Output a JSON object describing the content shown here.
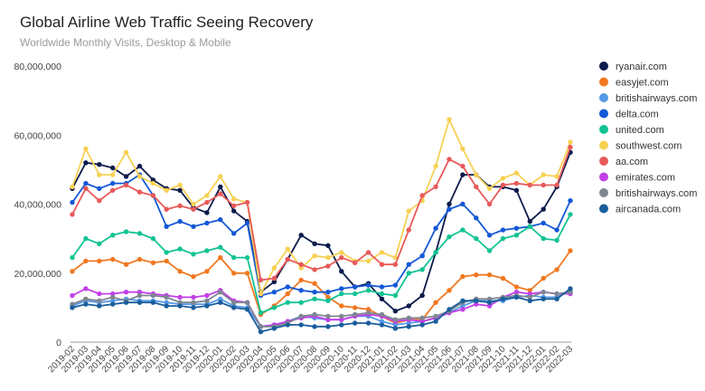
{
  "chart_data": {
    "type": "line",
    "title": "Global Airline Web Traffic Seeing Recovery",
    "subtitle": "Worldwide Monthly Visits, Desktop & Mobile",
    "xlabel": "",
    "ylabel": "",
    "ylim": [
      0,
      80000000
    ],
    "y_ticks": [
      0,
      20000000,
      40000000,
      60000000,
      80000000
    ],
    "y_tick_labels": [
      "0",
      "20,000,000",
      "40,000,000",
      "60,000,000",
      "80,000,000"
    ],
    "grid": false,
    "legend_position": "right",
    "x": [
      "2019-02",
      "2019-03",
      "2019-04",
      "2019-05",
      "2019-06",
      "2019-07",
      "2019-08",
      "2019-09",
      "2019-10",
      "2019-11",
      "2019-12",
      "2020-01",
      "2020-02",
      "2020-03",
      "2020-04",
      "2020-05",
      "2020-06",
      "2020-07",
      "2020-08",
      "2020-09",
      "2020-10",
      "2020-11",
      "2020-12",
      "2021-01",
      "2021-02",
      "2021-03",
      "2021-04",
      "2021-05",
      "2021-06",
      "2021-07",
      "2021-08",
      "2021-09",
      "2021-10",
      "2021-11",
      "2021-12",
      "2022-01",
      "2022-02",
      "2022-03"
    ],
    "series": [
      {
        "name": "ryanair.com",
        "color": "#0d1b4c",
        "values": [
          44500000,
          52000000,
          51500000,
          50500000,
          48000000,
          51000000,
          47000000,
          44500000,
          44000000,
          39000000,
          37500000,
          45000000,
          38000000,
          35000000,
          14500000,
          17500000,
          24000000,
          31000000,
          28500000,
          28000000,
          20500000,
          16000000,
          17000000,
          12500000,
          9000000,
          10500000,
          13500000,
          26000000,
          40000000,
          48500000,
          48500000,
          45000000,
          45000000,
          44000000,
          35000000,
          38500000,
          45000000,
          55000000
        ]
      },
      {
        "name": "easyjet.com",
        "color": "#f07820",
        "values": [
          20500000,
          23500000,
          23500000,
          24000000,
          22500000,
          24000000,
          23000000,
          23500000,
          20500000,
          19000000,
          20500000,
          24500000,
          20000000,
          20000000,
          8000000,
          10500000,
          14000000,
          18000000,
          17000000,
          13000000,
          10500000,
          10000000,
          9500000,
          7500000,
          5500000,
          6500000,
          6500000,
          11500000,
          15000000,
          19000000,
          19500000,
          19500000,
          18500000,
          16000000,
          15000000,
          18500000,
          21000000,
          26500000
        ]
      },
      {
        "name": "britishairways.com",
        "color": "#5599e8",
        "values": [
          10500000,
          12000000,
          11500000,
          12000000,
          12500000,
          12000000,
          12000000,
          11500000,
          11000000,
          11000000,
          11000000,
          12500000,
          10500000,
          10000000,
          4500000,
          5000000,
          6000000,
          7500000,
          7000000,
          6500000,
          6500000,
          7500000,
          7500000,
          6000000,
          5000000,
          5500000,
          6000000,
          7000000,
          8500000,
          10500000,
          12000000,
          12000000,
          12000000,
          13000000,
          13500000,
          13000000,
          13000000,
          15000000
        ]
      },
      {
        "name": "delta.com",
        "color": "#1558d6",
        "values": [
          40500000,
          46000000,
          44500000,
          46000000,
          46000000,
          48500000,
          42500000,
          33500000,
          35000000,
          33500000,
          34500000,
          35500000,
          31500000,
          34500000,
          13500000,
          14500000,
          16000000,
          15000000,
          14500000,
          14500000,
          15500000,
          16000000,
          16500000,
          16000000,
          16500000,
          22500000,
          25000000,
          33000000,
          38500000,
          40000000,
          36000000,
          31000000,
          32500000,
          33000000,
          33500000,
          34500000,
          32500000,
          41000000
        ]
      },
      {
        "name": "united.com",
        "color": "#12c393",
        "values": [
          24500000,
          30000000,
          28500000,
          31000000,
          32000000,
          31500000,
          30000000,
          26000000,
          27000000,
          25500000,
          26500000,
          27500000,
          24500000,
          24500000,
          8500000,
          10000000,
          11500000,
          11500000,
          12500000,
          12000000,
          14000000,
          14000000,
          15000000,
          14000000,
          13500000,
          20000000,
          21000000,
          26000000,
          30500000,
          32500000,
          30000000,
          26500000,
          30000000,
          31000000,
          33500000,
          30000000,
          29500000,
          37000000
        ]
      },
      {
        "name": "southwest.com",
        "color": "#f7d154",
        "values": [
          45000000,
          56000000,
          48500000,
          48500000,
          55000000,
          48000000,
          46000000,
          44000000,
          45500000,
          40000000,
          42500000,
          48000000,
          41500000,
          40500000,
          14000000,
          21500000,
          27000000,
          21500000,
          25000000,
          24500000,
          26000000,
          23500000,
          23500000,
          26000000,
          24500000,
          38000000,
          41000000,
          51000000,
          64500000,
          56000000,
          48500000,
          44500000,
          47500000,
          49000000,
          45500000,
          48500000,
          48000000,
          58000000
        ]
      },
      {
        "name": "aa.com",
        "color": "#e85959",
        "values": [
          37000000,
          44500000,
          41000000,
          44000000,
          45500000,
          43500000,
          42500000,
          38500000,
          39500000,
          38500000,
          40500000,
          43000000,
          39500000,
          40500000,
          18000000,
          18500000,
          24000000,
          22500000,
          21000000,
          22000000,
          24500000,
          23000000,
          26000000,
          22500000,
          22500000,
          32500000,
          42500000,
          45000000,
          53000000,
          51000000,
          45000000,
          40000000,
          45500000,
          46000000,
          45500000,
          45500000,
          45500000,
          56500000
        ]
      },
      {
        "name": "emirates.com",
        "color": "#c23fe8",
        "values": [
          13500000,
          15500000,
          14000000,
          14000000,
          14500000,
          14500000,
          14000000,
          13500000,
          13000000,
          13000000,
          13500000,
          15000000,
          12000000,
          11500000,
          4500000,
          5000000,
          6000000,
          7000000,
          7500000,
          6500000,
          6500000,
          7500000,
          8000000,
          7500000,
          6000000,
          6500000,
          6000000,
          7000000,
          8500000,
          9500000,
          11000000,
          10500000,
          13000000,
          14500000,
          14000000,
          14500000,
          14000000,
          14000000
        ]
      },
      {
        "name": "britishairways.com",
        "color": "#7f8691",
        "values": [
          11000000,
          12500000,
          12000000,
          13000000,
          12000000,
          13500000,
          13500000,
          13000000,
          11500000,
          11500000,
          12000000,
          14500000,
          11500000,
          11500000,
          4500000,
          4500000,
          5500000,
          7500000,
          8000000,
          7500000,
          7500000,
          8000000,
          8500000,
          8000000,
          6500000,
          7000000,
          7000000,
          7500000,
          9000000,
          11500000,
          12500000,
          12500000,
          13000000,
          13500000,
          13000000,
          14500000,
          14000000,
          14500000
        ]
      },
      {
        "name": "aircanada.com",
        "color": "#1a5e9c",
        "values": [
          10000000,
          11000000,
          10500000,
          11000000,
          11500000,
          11500000,
          11500000,
          10500000,
          10500000,
          10000000,
          10500000,
          11500000,
          10000000,
          9500000,
          3000000,
          4000000,
          5000000,
          5000000,
          4500000,
          4500000,
          5000000,
          5500000,
          5500000,
          5000000,
          4000000,
          4500000,
          5000000,
          6000000,
          9500000,
          12000000,
          12000000,
          11500000,
          12500000,
          13000000,
          12000000,
          12500000,
          12500000,
          15500000
        ]
      }
    ]
  }
}
